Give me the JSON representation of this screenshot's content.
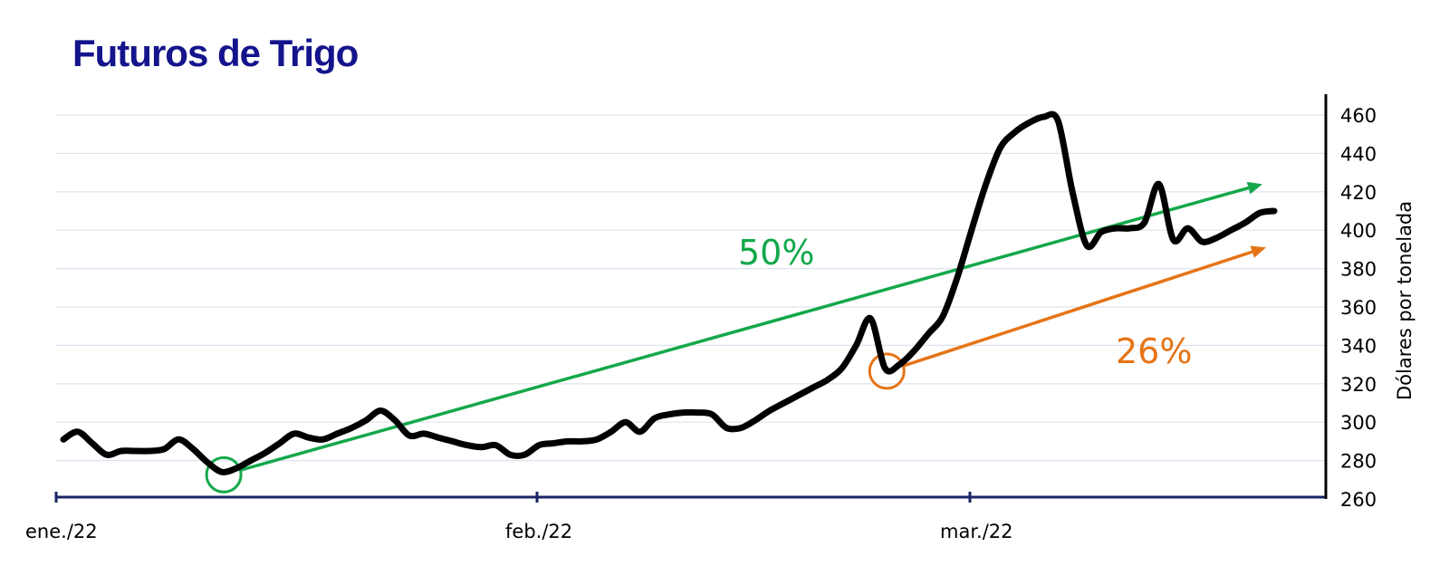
{
  "chart_data": {
    "type": "line",
    "title": "Futuros de Trigo",
    "ylabel": "Dólares por tonelada",
    "xlabel": "",
    "ylim": [
      260,
      460
    ],
    "y_ticks": [
      260,
      280,
      300,
      320,
      340,
      360,
      380,
      400,
      420,
      440,
      460
    ],
    "x_ticks": [
      "ene./22",
      "feb./22",
      "mar./22"
    ],
    "grid": "horizontal",
    "y_axis_side": "right",
    "series": [
      {
        "values_by_day": [
          [
            1,
            291
          ],
          [
            2,
            295
          ],
          [
            3,
            289
          ],
          [
            4,
            283
          ],
          [
            5,
            285
          ],
          [
            6,
            285
          ],
          [
            7,
            285
          ],
          [
            8,
            286
          ],
          [
            9,
            291
          ],
          [
            10,
            286
          ],
          [
            11,
            279
          ],
          [
            12,
            274
          ],
          [
            13,
            276
          ],
          [
            14,
            280
          ],
          [
            15,
            284
          ],
          [
            16,
            289
          ],
          [
            17,
            294
          ],
          [
            18,
            292
          ],
          [
            19,
            291
          ],
          [
            20,
            294
          ],
          [
            21,
            297
          ],
          [
            22,
            301
          ],
          [
            23,
            306
          ],
          [
            24,
            301
          ],
          [
            25,
            293
          ],
          [
            26,
            294
          ],
          [
            27,
            292
          ],
          [
            28,
            290
          ],
          [
            29,
            288
          ],
          [
            30,
            287
          ],
          [
            31,
            288
          ],
          [
            32,
            283
          ],
          [
            33,
            283
          ],
          [
            34,
            288
          ],
          [
            35,
            289
          ],
          [
            36,
            290
          ],
          [
            37,
            290
          ],
          [
            38,
            291
          ],
          [
            39,
            295
          ],
          [
            40,
            300
          ],
          [
            41,
            295
          ],
          [
            42,
            302
          ],
          [
            43,
            304
          ],
          [
            44,
            305
          ],
          [
            45,
            305
          ],
          [
            46,
            304
          ],
          [
            47,
            297
          ],
          [
            48,
            297
          ],
          [
            49,
            301
          ],
          [
            50,
            306
          ],
          [
            51,
            310
          ],
          [
            52,
            314
          ],
          [
            53,
            318
          ],
          [
            54,
            322
          ],
          [
            55,
            328
          ],
          [
            56,
            340
          ],
          [
            57,
            354
          ],
          [
            58,
            328
          ],
          [
            59,
            330
          ],
          [
            60,
            337
          ],
          [
            61,
            346
          ],
          [
            62,
            355
          ],
          [
            63,
            375
          ],
          [
            64,
            400
          ],
          [
            65,
            424
          ],
          [
            66,
            443
          ],
          [
            67,
            451
          ],
          [
            68,
            456
          ],
          [
            69,
            459
          ],
          [
            70,
            457
          ],
          [
            71,
            420
          ],
          [
            72,
            392
          ],
          [
            73,
            399
          ],
          [
            74,
            401
          ],
          [
            75,
            401
          ],
          [
            76,
            404
          ],
          [
            77,
            424
          ],
          [
            78,
            395
          ],
          [
            79,
            401
          ],
          [
            80,
            394
          ],
          [
            81,
            396
          ],
          [
            82,
            400
          ],
          [
            83,
            404
          ],
          [
            84,
            409
          ],
          [
            85,
            410
          ]
        ]
      }
    ],
    "annotations": [
      {
        "text": "50%",
        "color": "#13a84a",
        "from_day": 12,
        "from_value": 274,
        "to_day": 85,
        "to_value": 424
      },
      {
        "text": "26%",
        "color": "#e57417",
        "from_day": 58,
        "from_value": 328,
        "to_day": 85,
        "to_value": 391
      }
    ],
    "colors": {
      "title": "#14148c",
      "line": "#000000",
      "axis": "#1a2466",
      "grid": "#dde3ef",
      "green": "#13a84a",
      "orange": "#e57417"
    }
  }
}
